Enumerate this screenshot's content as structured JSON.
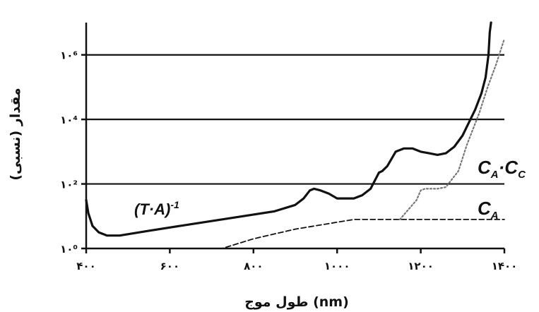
{
  "chart_data": {
    "type": "line",
    "xlabel": "طول موج (nm)",
    "ylabel": "مقدار (نسبی)",
    "x_ticks": [
      {
        "value": 400,
        "label": "۴۰۰"
      },
      {
        "value": 600,
        "label": "۶۰۰"
      },
      {
        "value": 800,
        "label": "۸۰۰"
      },
      {
        "value": 1000,
        "label": "۱۰۰۰"
      },
      {
        "value": 1200,
        "label": "۱۲۰۰"
      },
      {
        "value": 1400,
        "label": "۱۴۰۰"
      }
    ],
    "y_ticks": [
      {
        "value": 0,
        "label": "۱۰⁰"
      },
      {
        "value": 2,
        "label": "۱۰²"
      },
      {
        "value": 4,
        "label": "۱۰⁴"
      },
      {
        "value": 6,
        "label": "۱۰⁶"
      }
    ],
    "xlim": [
      400,
      1400
    ],
    "ylim": [
      0,
      7.0
    ],
    "y_scale": "log",
    "grid": "horizontal",
    "series": [
      {
        "name": "(T·A)⁻¹",
        "style": "solid",
        "color": "#111111",
        "x": [
          400,
          405,
          415,
          430,
          450,
          480,
          550,
          650,
          750,
          850,
          900,
          920,
          935,
          945,
          960,
          980,
          1000,
          1040,
          1060,
          1080,
          1100,
          1108,
          1120,
          1140,
          1160,
          1180,
          1200,
          1220,
          1240,
          1260,
          1280,
          1300,
          1315,
          1330,
          1345,
          1355,
          1362,
          1365,
          1368
        ],
        "y": [
          1.5,
          1.1,
          0.7,
          0.5,
          0.4,
          0.4,
          0.55,
          0.75,
          0.95,
          1.15,
          1.35,
          1.55,
          1.8,
          1.85,
          1.8,
          1.7,
          1.55,
          1.55,
          1.65,
          1.85,
          2.35,
          2.4,
          2.55,
          3.0,
          3.1,
          3.1,
          3.0,
          2.95,
          2.9,
          2.95,
          3.15,
          3.5,
          3.9,
          4.3,
          4.8,
          5.3,
          6.0,
          6.7,
          7.0
        ]
      },
      {
        "name": "C_A",
        "style": "dashed",
        "color": "#111111",
        "x": [
          400,
          725,
          800,
          900,
          1040,
          1400
        ],
        "y": [
          0,
          0,
          0.3,
          0.6,
          0.9,
          0.9
        ]
      },
      {
        "name": "C_A·C_C",
        "style": "dotted",
        "color": "#777777",
        "x": [
          1150,
          1190,
          1200,
          1210,
          1240,
          1260,
          1290,
          1310,
          1340,
          1360,
          1380,
          1400
        ],
        "y": [
          0.9,
          1.5,
          1.8,
          1.85,
          1.85,
          1.9,
          2.4,
          3.2,
          4.2,
          5.0,
          5.7,
          6.5
        ]
      }
    ],
    "series_labels": [
      {
        "text_main": "(T·A)",
        "text_sup": "-1"
      },
      {
        "text_main": "C",
        "text_sub": "A"
      },
      {
        "text_main": "C",
        "text_sub": "A",
        "text_mid": "·C",
        "text_sub2": "C"
      }
    ]
  }
}
